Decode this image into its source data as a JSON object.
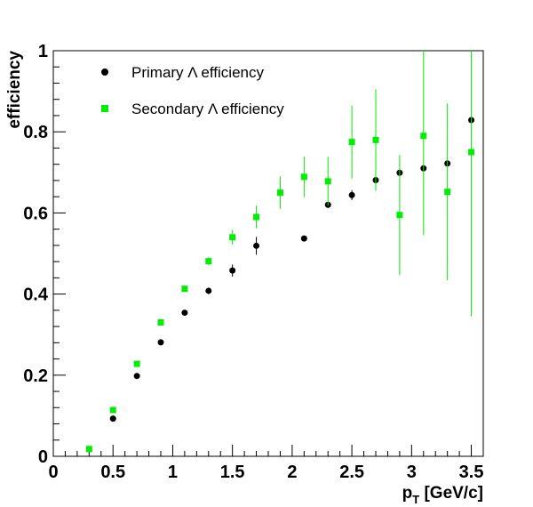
{
  "chart_data": {
    "type": "scatter",
    "xlabel": "p",
    "xlabel_subscript": "T",
    "xlabel_unit": " [GeV/c]",
    "ylabel": "efficiency",
    "xlim": [
      0,
      3.6
    ],
    "ylim": [
      0,
      1
    ],
    "x_ticks": [
      {
        "value": 0,
        "label": "0"
      },
      {
        "value": 0.5,
        "label": "0.5"
      },
      {
        "value": 1,
        "label": "1"
      },
      {
        "value": 1.5,
        "label": "1.5"
      },
      {
        "value": 2,
        "label": "2"
      },
      {
        "value": 2.5,
        "label": "2.5"
      },
      {
        "value": 3,
        "label": "3"
      },
      {
        "value": 3.5,
        "label": "3.5"
      }
    ],
    "y_ticks": [
      {
        "value": 0,
        "label": "0"
      },
      {
        "value": 0.2,
        "label": "0.2"
      },
      {
        "value": 0.4,
        "label": "0.4"
      },
      {
        "value": 0.6,
        "label": "0.6"
      },
      {
        "value": 0.8,
        "label": "0.8"
      },
      {
        "value": 1,
        "label": "1"
      }
    ],
    "grid": false,
    "legend_position": "top-left",
    "series": [
      {
        "name": "Primary Λ efficiency",
        "marker": "circle",
        "color": "#000000",
        "points": [
          {
            "x": 0.5,
            "y": 0.093,
            "err": 0.006
          },
          {
            "x": 0.7,
            "y": 0.198,
            "err": 0.006
          },
          {
            "x": 0.9,
            "y": 0.281,
            "err": 0.006
          },
          {
            "x": 1.1,
            "y": 0.354,
            "err": 0.006
          },
          {
            "x": 1.3,
            "y": 0.408,
            "err": 0.008
          },
          {
            "x": 1.5,
            "y": 0.458,
            "err": 0.015
          },
          {
            "x": 1.7,
            "y": 0.519,
            "err": 0.022
          },
          {
            "x": 2.1,
            "y": 0.537,
            "err": 0.0
          },
          {
            "x": 2.3,
            "y": 0.62,
            "err": 0.0
          },
          {
            "x": 2.5,
            "y": 0.644,
            "err": 0.012
          },
          {
            "x": 2.7,
            "y": 0.681,
            "err": 0.0
          },
          {
            "x": 2.9,
            "y": 0.699,
            "err": 0.0
          },
          {
            "x": 3.1,
            "y": 0.71,
            "err": 0.0
          },
          {
            "x": 3.3,
            "y": 0.722,
            "err": 0.0
          },
          {
            "x": 3.5,
            "y": 0.829,
            "err": 0.0
          }
        ]
      },
      {
        "name": "Secondary Λ efficiency",
        "marker": "square",
        "color": "#00ee00",
        "points": [
          {
            "x": 0.3,
            "y": 0.018,
            "err": 0.004
          },
          {
            "x": 0.5,
            "y": 0.114,
            "err": 0.005
          },
          {
            "x": 0.7,
            "y": 0.228,
            "err": 0.006
          },
          {
            "x": 0.9,
            "y": 0.33,
            "err": 0.006
          },
          {
            "x": 1.1,
            "y": 0.413,
            "err": 0.007
          },
          {
            "x": 1.3,
            "y": 0.481,
            "err": 0.01
          },
          {
            "x": 1.5,
            "y": 0.54,
            "err": 0.018
          },
          {
            "x": 1.7,
            "y": 0.59,
            "err": 0.028
          },
          {
            "x": 1.9,
            "y": 0.65,
            "err": 0.04
          },
          {
            "x": 2.1,
            "y": 0.689,
            "err": 0.05
          },
          {
            "x": 2.3,
            "y": 0.678,
            "err": 0.06
          },
          {
            "x": 2.5,
            "y": 0.775,
            "err": 0.09
          },
          {
            "x": 2.7,
            "y": 0.78,
            "err": 0.125
          },
          {
            "x": 2.9,
            "y": 0.595,
            "err": 0.148
          },
          {
            "x": 3.1,
            "y": 0.79,
            "err": 0.245
          },
          {
            "x": 3.3,
            "y": 0.652,
            "err": 0.218
          },
          {
            "x": 3.5,
            "y": 0.75,
            "err": 0.405
          }
        ]
      }
    ]
  }
}
